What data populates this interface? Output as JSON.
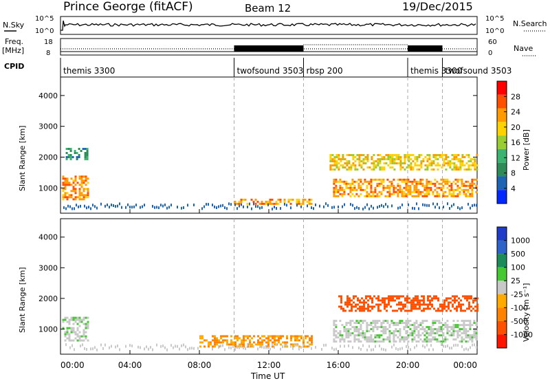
{
  "header": {
    "station": "Prince George (fitACF)",
    "beam": "Beam 12",
    "date": "19/Dec/2015"
  },
  "noise_panel": {
    "left_label": "N.Sky",
    "left_ticks": [
      "10^5",
      "10^0"
    ],
    "right_ticks": [
      "10^5",
      "10^0"
    ],
    "right_label": "N.Search"
  },
  "freq_panel": {
    "left_label_1": "Freq.",
    "left_label_2": "[MHz]",
    "left_ticks": [
      "18",
      "8"
    ],
    "right_ticks": [
      "60",
      "0"
    ],
    "right_label": "Nave"
  },
  "cpid": {
    "label": "CPID",
    "segments": [
      {
        "name": "themis 3300",
        "start": 0,
        "end": 10
      },
      {
        "name": "twofsound 3503",
        "start": 10,
        "end": 14
      },
      {
        "name": "rbsp 200",
        "start": 14,
        "end": 20
      },
      {
        "name": "themis 3300",
        "start": 20,
        "end": 22
      },
      {
        "name": "twofsound 3503",
        "start": 22,
        "end": 24
      }
    ]
  },
  "power_panel": {
    "ylabel": "Slant Range [km]",
    "yticks": [
      "4000",
      "3000",
      "2000",
      "1000"
    ],
    "colorbar_label": "Power [dB]",
    "colorbar_ticks": [
      "28",
      "24",
      "20",
      "16",
      "12",
      "8",
      "4"
    ],
    "colorbar_colors": [
      "#ff0000",
      "#ff5000",
      "#ff9b00",
      "#ffd200",
      "#9acd32",
      "#3cb371",
      "#2e8b57",
      "#1e64b4",
      "#0028ff"
    ]
  },
  "velocity_panel": {
    "ylabel": "Slant Range [km]",
    "yticks": [
      "4000",
      "3000",
      "2000",
      "1000"
    ],
    "colorbar_label": "Velocity [m s⁻¹]",
    "colorbar_ticks": [
      "1000",
      "500",
      "100",
      "25",
      "-25",
      "-100",
      "-500",
      "-1000"
    ],
    "colorbar_colors": [
      "#1e3cc8",
      "#2d64c8",
      "#1e8c5a",
      "#46c832",
      "#c8c8c8",
      "#ffaa00",
      "#ff8200",
      "#ff5000",
      "#ff1400"
    ]
  },
  "x_axis": {
    "ticks": [
      "00:00",
      "04:00",
      "08:00",
      "12:00",
      "16:00",
      "20:00",
      "00:00"
    ],
    "label": "Time UT"
  },
  "chart_data": {
    "type": "heatmap",
    "title": "Prince George (fitACF)",
    "subtitle": "Beam 12",
    "date": "19/Dec/2015",
    "x_range_hours": [
      0,
      24
    ],
    "ylim_km": [
      180,
      4600
    ],
    "cpid_boundaries_hours": [
      10,
      14,
      20,
      22
    ],
    "power_echo_regions": [
      {
        "t_start": 0.1,
        "t_end": 1.6,
        "r_min": 600,
        "r_max": 1400,
        "level_db": 24
      },
      {
        "t_start": 0.3,
        "t_end": 1.5,
        "r_min": 1900,
        "r_max": 2300,
        "level_db": 8
      },
      {
        "t_start": 10,
        "t_end": 14.5,
        "r_min": 450,
        "r_max": 650,
        "level_db": 22
      },
      {
        "t_start": 15.7,
        "t_end": 24,
        "r_min": 700,
        "r_max": 1300,
        "level_db": 24
      },
      {
        "t_start": 15.5,
        "t_end": 24,
        "r_min": 1600,
        "r_max": 2100,
        "level_db": 20
      }
    ],
    "velocity_echo_regions": [
      {
        "t_start": 0.1,
        "t_end": 1.6,
        "r_min": 600,
        "r_max": 1400,
        "velocity": 0
      },
      {
        "t_start": 8,
        "t_end": 14.5,
        "r_min": 450,
        "r_max": 800,
        "velocity": -100
      },
      {
        "t_start": 16,
        "t_end": 24,
        "r_min": 1600,
        "r_max": 2100,
        "velocity": -500
      },
      {
        "t_start": 15.7,
        "t_end": 24,
        "r_min": 600,
        "r_max": 1300,
        "velocity": 0
      }
    ]
  }
}
